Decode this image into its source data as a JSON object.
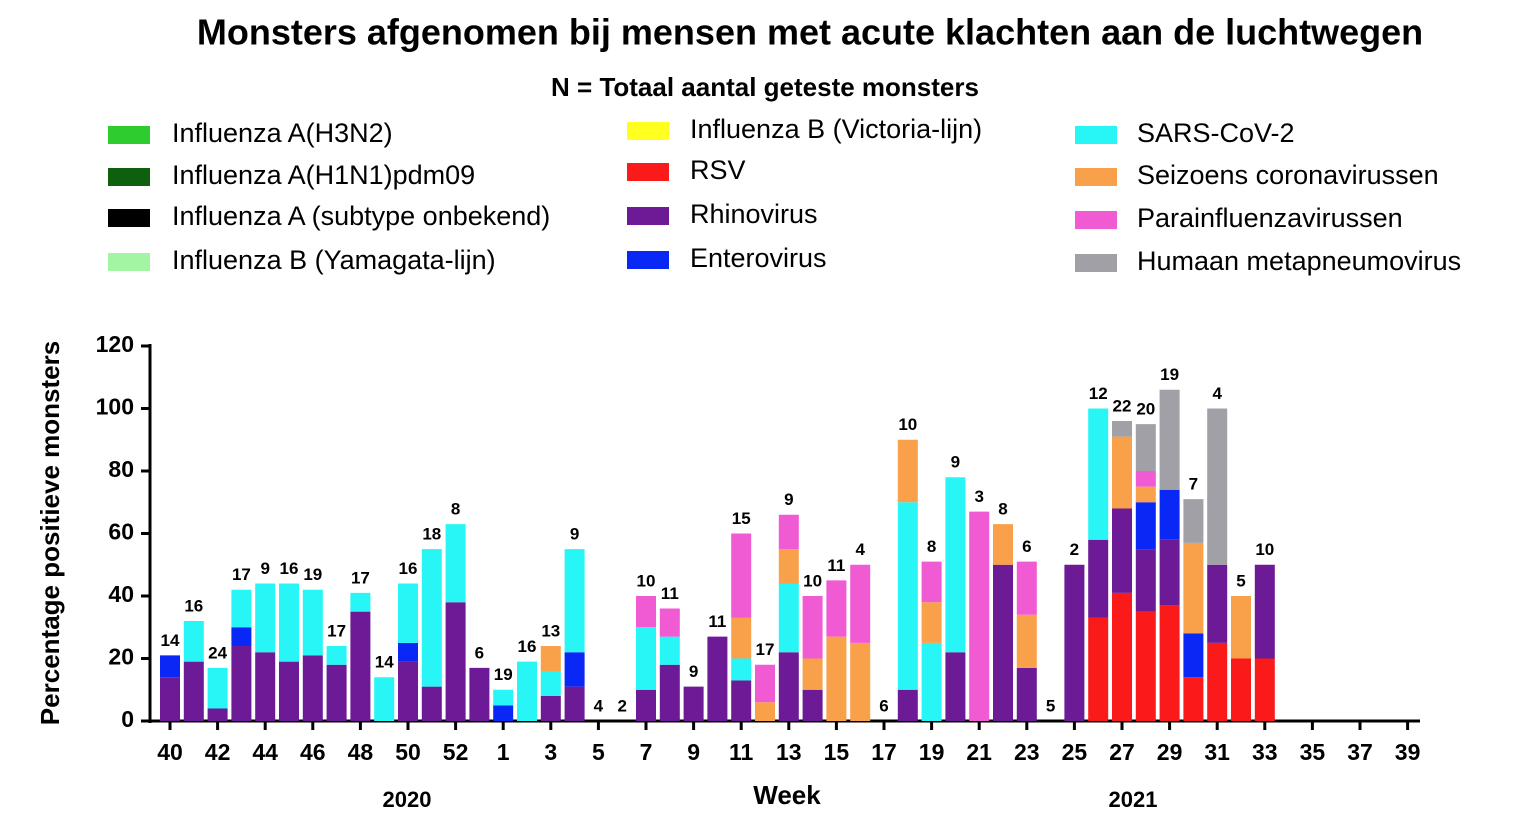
{
  "chart_data": {
    "type": "bar",
    "stacked": true,
    "title": "Monsters afgenomen bij mensen met acute klachten aan de luchtwegen",
    "subtitle": "N = Totaal aantal geteste monsters",
    "y_label": "Percentage positieve monsters",
    "x_label": "Week",
    "year_labels": [
      "2020",
      "2021"
    ],
    "categories": [
      "40",
      null,
      "42",
      null,
      "44",
      null,
      "46",
      null,
      "48",
      null,
      "50",
      null,
      "52",
      null,
      "1",
      null,
      "3",
      null,
      "5",
      null,
      "7",
      null,
      "9",
      null,
      "11",
      null,
      "13",
      null,
      "15",
      null,
      "17",
      null,
      "19",
      null,
      "21",
      null,
      "23",
      null,
      "25",
      null,
      "27",
      null,
      "29",
      null,
      "31",
      null,
      "33",
      null,
      "35",
      null,
      "37",
      null,
      "39"
    ],
    "ylim": [
      0,
      120
    ],
    "yticks": [
      0,
      20,
      40,
      60,
      80,
      100,
      120
    ],
    "bar_labels": [
      14,
      16,
      24,
      17,
      9,
      16,
      19,
      17,
      17,
      14,
      16,
      18,
      8,
      6,
      19,
      16,
      13,
      9,
      4,
      2,
      10,
      11,
      9,
      11,
      15,
      17,
      9,
      10,
      11,
      4,
      6,
      10,
      8,
      9,
      3,
      8,
      6,
      5,
      2,
      12,
      22,
      20,
      19,
      7,
      4,
      5,
      10,
      null,
      null,
      null,
      null,
      null,
      null
    ],
    "series": [
      {
        "name": "Influenza A(H3N2)",
        "color": "#2ecc2e",
        "values": [
          0,
          0,
          0,
          0,
          0,
          0,
          0,
          0,
          0,
          0,
          0,
          0,
          0,
          0,
          0,
          0,
          0,
          0,
          0,
          0,
          0,
          0,
          0,
          0,
          0,
          0,
          0,
          0,
          0,
          0,
          0,
          0,
          0,
          0,
          0,
          0,
          0,
          0,
          0,
          0,
          0,
          0,
          0,
          0,
          0,
          0,
          0,
          0,
          0,
          0,
          0,
          0,
          0
        ]
      },
      {
        "name": "Influenza A(H1N1)pdm09",
        "color": "#0e5f0e",
        "values": [
          0,
          0,
          0,
          0,
          0,
          0,
          0,
          0,
          0,
          0,
          0,
          0,
          0,
          0,
          0,
          0,
          0,
          0,
          0,
          0,
          0,
          0,
          0,
          0,
          0,
          0,
          0,
          0,
          0,
          0,
          0,
          0,
          0,
          0,
          0,
          0,
          0,
          0,
          0,
          0,
          0,
          0,
          0,
          0,
          0,
          0,
          0,
          0,
          0,
          0,
          0,
          0,
          0
        ]
      },
      {
        "name": "Influenza A (subtype onbekend)",
        "color": "#000000",
        "values": [
          0,
          0,
          0,
          0,
          0,
          0,
          0,
          0,
          0,
          0,
          0,
          0,
          0,
          0,
          0,
          0,
          0,
          0,
          0,
          0,
          0,
          0,
          0,
          0,
          0,
          0,
          0,
          0,
          0,
          0,
          0,
          0,
          0,
          0,
          0,
          0,
          0,
          0,
          0,
          0,
          0,
          0,
          0,
          0,
          0,
          0,
          0,
          0,
          0,
          0,
          0,
          0,
          0
        ]
      },
      {
        "name": "Influenza B (Yamagata-lijn)",
        "color": "#a3f5a3",
        "values": [
          0,
          0,
          0,
          0,
          0,
          0,
          0,
          0,
          0,
          0,
          0,
          0,
          0,
          0,
          0,
          0,
          0,
          0,
          0,
          0,
          0,
          0,
          0,
          0,
          0,
          0,
          0,
          0,
          0,
          0,
          0,
          0,
          0,
          0,
          0,
          0,
          0,
          0,
          0,
          0,
          0,
          0,
          0,
          0,
          0,
          0,
          0,
          0,
          0,
          0,
          0,
          0,
          0
        ]
      },
      {
        "name": "Influenza B (Victoria-lijn)",
        "color": "#ffff20",
        "values": [
          0,
          0,
          0,
          0,
          0,
          0,
          0,
          0,
          0,
          0,
          0,
          0,
          0,
          0,
          0,
          0,
          0,
          0,
          0,
          0,
          0,
          0,
          0,
          0,
          0,
          0,
          0,
          0,
          0,
          0,
          0,
          0,
          0,
          0,
          0,
          0,
          0,
          0,
          0,
          0,
          0,
          0,
          0,
          0,
          0,
          0,
          0,
          0,
          0,
          0,
          0,
          0,
          0
        ]
      },
      {
        "name": "RSV",
        "color": "#fa1a1a",
        "values": [
          0,
          0,
          0,
          0,
          0,
          0,
          0,
          0,
          0,
          0,
          0,
          0,
          0,
          0,
          0,
          0,
          0,
          0,
          0,
          0,
          0,
          0,
          0,
          0,
          0,
          0,
          0,
          0,
          0,
          0,
          0,
          0,
          0,
          0,
          0,
          0,
          0,
          0,
          0,
          33,
          41,
          35,
          37,
          14,
          25,
          20,
          20,
          0,
          0,
          0,
          0,
          0,
          0
        ]
      },
      {
        "name": "Rhinovirus",
        "color": "#6d1a96",
        "values": [
          14,
          19,
          4,
          24,
          22,
          19,
          21,
          18,
          35,
          0,
          19,
          11,
          38,
          17,
          0,
          0,
          8,
          11,
          0,
          0,
          10,
          18,
          11,
          27,
          13,
          0,
          22,
          10,
          0,
          0,
          0,
          10,
          0,
          22,
          0,
          50,
          17,
          0,
          50,
          25,
          27,
          20,
          21,
          0,
          25,
          0,
          30,
          0,
          0,
          0,
          0,
          0,
          0
        ]
      },
      {
        "name": "Enterovirus",
        "color": "#0a28f5",
        "values": [
          7,
          0,
          0,
          6,
          0,
          0,
          0,
          0,
          0,
          0,
          6,
          0,
          0,
          0,
          5,
          0,
          0,
          11,
          0,
          0,
          0,
          0,
          0,
          0,
          0,
          0,
          0,
          0,
          0,
          0,
          0,
          0,
          0,
          0,
          0,
          0,
          0,
          0,
          0,
          0,
          0,
          15,
          16,
          14,
          0,
          0,
          0,
          0,
          0,
          0,
          0,
          0,
          0
        ]
      },
      {
        "name": "SARS-CoV-2",
        "color": "#28f5f5",
        "values": [
          0,
          13,
          13,
          12,
          22,
          25,
          21,
          6,
          6,
          14,
          19,
          44,
          25,
          0,
          5,
          19,
          8,
          33,
          0,
          0,
          20,
          9,
          0,
          0,
          7,
          0,
          22,
          0,
          0,
          0,
          0,
          60,
          25,
          56,
          0,
          0,
          0,
          0,
          0,
          42,
          0,
          0,
          0,
          0,
          0,
          0,
          0,
          0,
          0,
          0,
          0,
          0,
          0
        ]
      },
      {
        "name": "Seizoens coronavirussen",
        "color": "#f8a04a",
        "values": [
          0,
          0,
          0,
          0,
          0,
          0,
          0,
          0,
          0,
          0,
          0,
          0,
          0,
          0,
          0,
          0,
          8,
          0,
          0,
          0,
          0,
          0,
          0,
          0,
          13,
          6,
          11,
          10,
          27,
          25,
          0,
          20,
          13,
          0,
          0,
          13,
          17,
          0,
          0,
          0,
          23,
          5,
          0,
          29,
          0,
          20,
          0,
          0,
          0,
          0,
          0,
          0,
          0
        ]
      },
      {
        "name": "Parainfluenzavirussen",
        "color": "#f05ad2",
        "values": [
          0,
          0,
          0,
          0,
          0,
          0,
          0,
          0,
          0,
          0,
          0,
          0,
          0,
          0,
          0,
          0,
          0,
          0,
          0,
          0,
          10,
          9,
          0,
          0,
          27,
          12,
          11,
          20,
          18,
          25,
          0,
          0,
          13,
          0,
          67,
          0,
          17,
          0,
          0,
          0,
          0,
          5,
          0,
          0,
          0,
          0,
          0,
          0,
          0,
          0,
          0,
          0,
          0
        ]
      },
      {
        "name": "Humaan metapneumovirus",
        "color": "#a0a0a6",
        "values": [
          0,
          0,
          0,
          0,
          0,
          0,
          0,
          0,
          0,
          0,
          0,
          0,
          0,
          0,
          0,
          0,
          0,
          0,
          0,
          0,
          0,
          0,
          0,
          0,
          0,
          0,
          0,
          0,
          0,
          0,
          0,
          0,
          0,
          0,
          0,
          0,
          0,
          0,
          0,
          0,
          5,
          15,
          32,
          14,
          50,
          0,
          0,
          0,
          0,
          0,
          0,
          0,
          0
        ]
      }
    ]
  }
}
